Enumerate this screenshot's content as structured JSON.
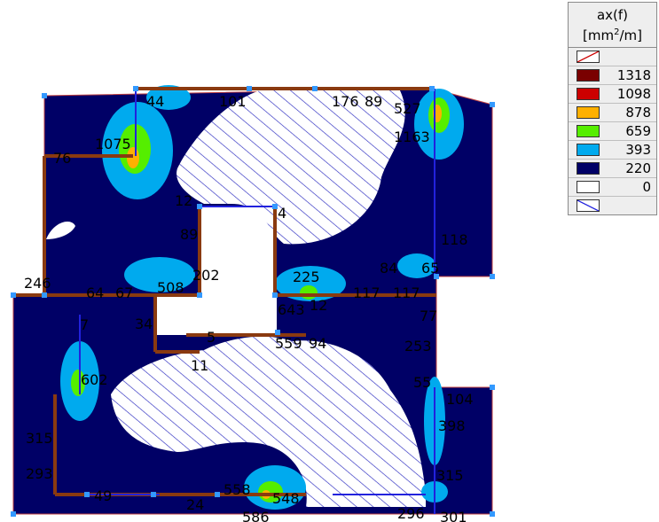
{
  "legend": {
    "title": "ax(f)",
    "unit_base": "[mm",
    "unit_exp": "2",
    "unit_tail": "/m]",
    "rows": [
      {
        "value": "",
        "color": "#ffffff",
        "kind": "over-limit"
      },
      {
        "value": "1318",
        "color": "#7a0000"
      },
      {
        "value": "1098",
        "color": "#cc0000"
      },
      {
        "value": "878",
        "color": "#ffb000"
      },
      {
        "value": "659",
        "color": "#55ee00"
      },
      {
        "value": "393",
        "color": "#00aaee"
      },
      {
        "value": "220",
        "color": "#000066"
      },
      {
        "value": "0",
        "color": "#ffffff",
        "kind": "zero"
      },
      {
        "value": "",
        "color": "#ffffff",
        "kind": "hatched"
      }
    ]
  },
  "labels": {
    "l44": "44",
    "l101": "101",
    "l176": "176",
    "l89a": "89",
    "l527": "527",
    "l1075": "1075",
    "l76": "76",
    "l1163": "1163",
    "l12": "12",
    "l4": "4",
    "l89b": "89",
    "l118": "118",
    "l84": "84",
    "l65": "65",
    "l202": "202",
    "l246": "246",
    "l64": "64",
    "l67": "67",
    "l508": "508",
    "l225": "225",
    "l117a": "117",
    "l117b": "117",
    "l643": "643",
    "l12b": "12",
    "l7": "7",
    "l34": "34",
    "l77": "77",
    "l5": "5",
    "l559": "559",
    "l94": "94",
    "l253": "253",
    "l11": "11",
    "l55": "55",
    "l104": "104",
    "l602": "602",
    "l398": "398",
    "l315a": "315",
    "l293": "293",
    "l315b": "315",
    "l49": "49",
    "l24": "24",
    "l558": "558",
    "l548": "548",
    "l586": "586",
    "l296": "296",
    "l301": "301"
  }
}
